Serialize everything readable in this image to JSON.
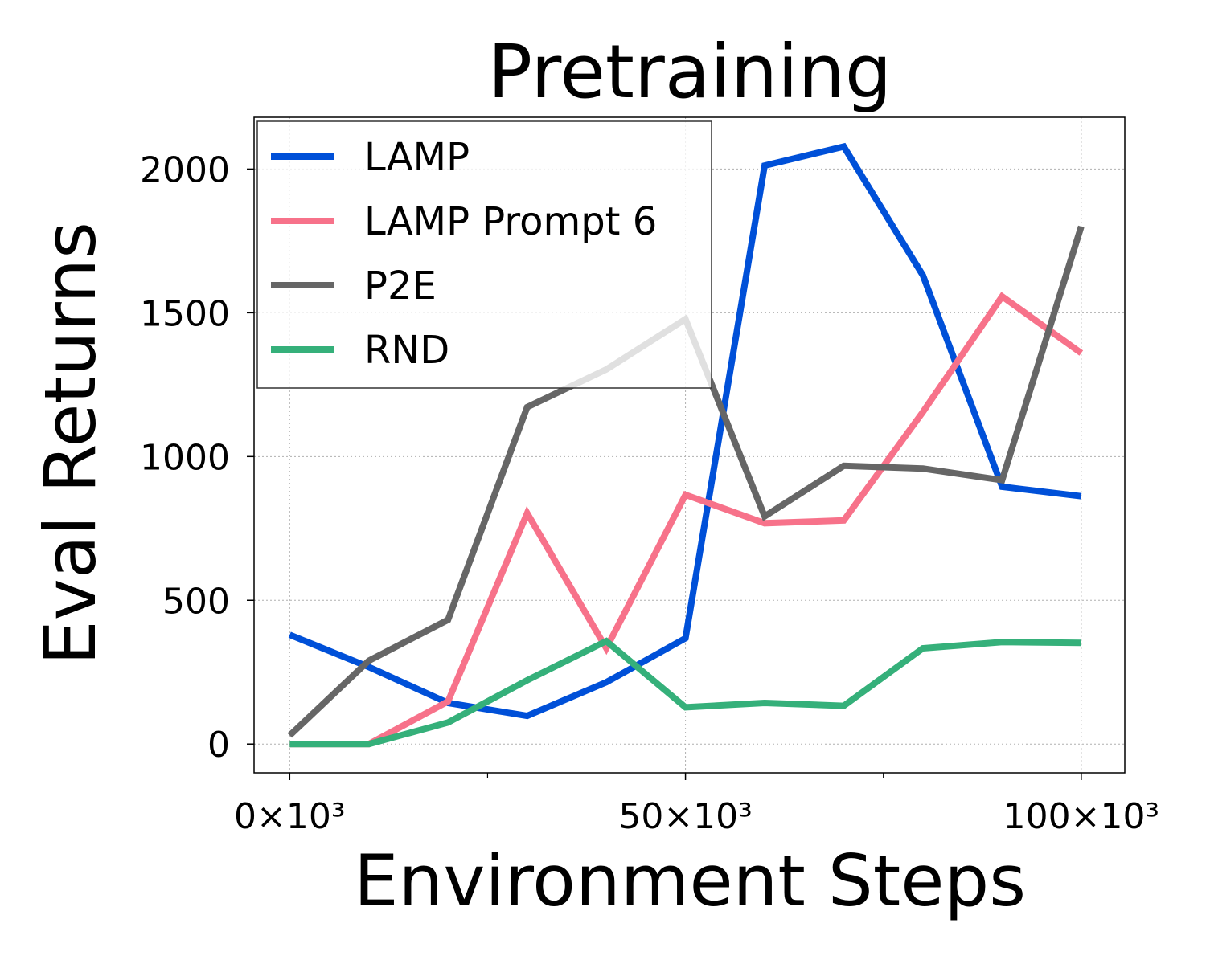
{
  "chart_data": {
    "type": "line",
    "title": "Pretraining",
    "xlabel": "Environment Steps",
    "ylabel": "Eval Returns",
    "xlim": [
      -4500,
      105500
    ],
    "ylim": [
      -100,
      2180
    ],
    "x_ticks": [
      0,
      50000,
      100000
    ],
    "x_minor_ticks": [
      25000,
      75000
    ],
    "x_tick_labels": [
      "0×10³",
      "50×10³",
      "100×10³"
    ],
    "y_ticks": [
      0,
      500,
      1000,
      1500,
      2000
    ],
    "y_tick_labels": [
      "0",
      "500",
      "1000",
      "1500",
      "2000"
    ],
    "grid": true,
    "legend_position": "top-left",
    "x": [
      0,
      10000,
      20000,
      30000,
      40000,
      50000,
      60000,
      70000,
      80000,
      90000,
      100000
    ],
    "series": [
      {
        "name": "LAMP",
        "color": "#0050d8",
        "values": [
          380,
          268,
          143,
          98,
          215,
          368,
          2012,
          2078,
          1630,
          895,
          862
        ]
      },
      {
        "name": "LAMP Prompt 6",
        "color": "#f7728a",
        "values": [
          0,
          0,
          148,
          803,
          333,
          867,
          768,
          778,
          1155,
          1557,
          1360
        ]
      },
      {
        "name": "P2E",
        "color": "#666666",
        "values": [
          30,
          290,
          432,
          1172,
          1303,
          1478,
          792,
          968,
          958,
          918,
          1800
        ]
      },
      {
        "name": "RND",
        "color": "#35b07a",
        "values": [
          0,
          0,
          75,
          222,
          358,
          128,
          143,
          133,
          333,
          355,
          352
        ]
      }
    ]
  }
}
